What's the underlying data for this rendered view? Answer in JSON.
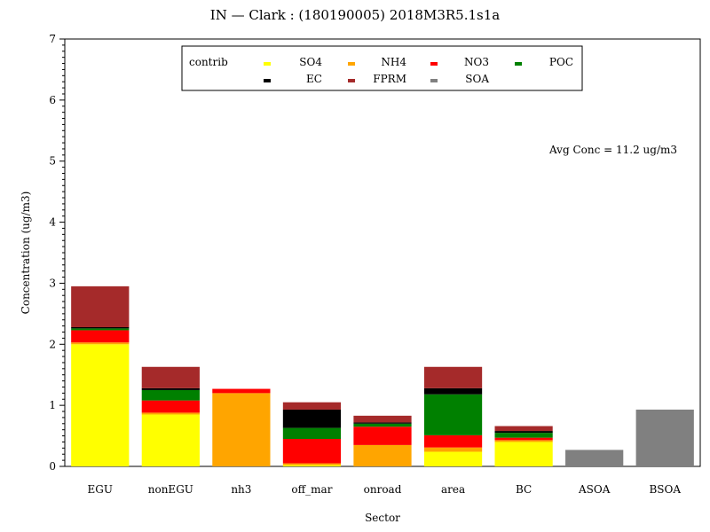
{
  "chart_data": {
    "type": "bar",
    "stacked": true,
    "title": "IN  —  Clark : (180190005)  2018M3R5.1s1a",
    "xlabel": "Sector",
    "ylabel": "Concentration  (ug/m3)",
    "ylim": [
      0,
      7
    ],
    "yticks": [
      0,
      1,
      2,
      3,
      4,
      5,
      6,
      7
    ],
    "grid": false,
    "legend_title": "contrib",
    "legend_placement": "top-center",
    "annotation": "Avg Conc  =  11.2  ug/m3",
    "categories": [
      "EGU",
      "nonEGU",
      "nh3",
      "off_mar",
      "onroad",
      "area",
      "BC",
      "ASOA",
      "BSOA"
    ],
    "series": [
      {
        "name": "SO4",
        "color": "#ffff00",
        "values": [
          2.0,
          0.85,
          0.0,
          0.02,
          0.0,
          0.24,
          0.4,
          0.0,
          0.0
        ]
      },
      {
        "name": "NH4",
        "color": "#ffa500",
        "values": [
          0.03,
          0.03,
          1.2,
          0.03,
          0.35,
          0.07,
          0.03,
          0.0,
          0.0
        ]
      },
      {
        "name": "NO3",
        "color": "#ff0000",
        "values": [
          0.2,
          0.2,
          0.07,
          0.4,
          0.3,
          0.2,
          0.04,
          0.0,
          0.0
        ]
      },
      {
        "name": "POC",
        "color": "#008000",
        "values": [
          0.03,
          0.17,
          0.0,
          0.18,
          0.05,
          0.67,
          0.08,
          0.0,
          0.0
        ]
      },
      {
        "name": "EC",
        "color": "#000000",
        "values": [
          0.02,
          0.03,
          0.0,
          0.3,
          0.02,
          0.1,
          0.03,
          0.0,
          0.0
        ]
      },
      {
        "name": "FPRM",
        "color": "#a52a2a",
        "values": [
          0.67,
          0.35,
          0.0,
          0.12,
          0.11,
          0.35,
          0.08,
          0.0,
          0.0
        ]
      },
      {
        "name": "SOA",
        "color": "#808080",
        "values": [
          0.0,
          0.0,
          0.0,
          0.0,
          0.0,
          0.0,
          0.0,
          0.27,
          0.93
        ]
      }
    ]
  }
}
